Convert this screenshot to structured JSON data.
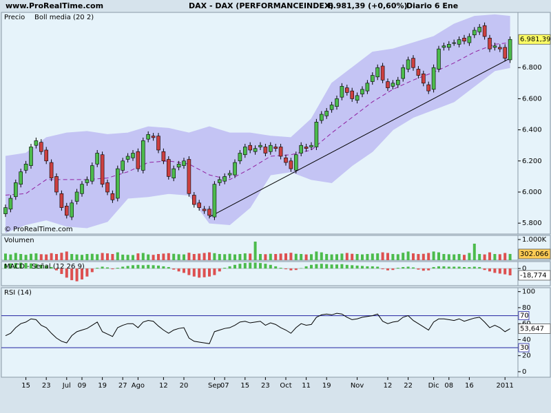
{
  "header": {
    "site": "www.ProRealTime.com",
    "instrument": "DAX - DAX (PERFORMANCEINDEX)",
    "quote": "6.981,39 (+0,60%)",
    "period": "Diario  6 Ene"
  },
  "chart_data": [
    {
      "type": "candlestick",
      "title": "Precio",
      "title_color": "#000000",
      "watermark": "© ProRealTime.com",
      "up_color": "#4cbb4c",
      "down_color": "#cc4040",
      "ylim": [
        5730,
        7155
      ],
      "yticks": [
        {
          "value": 5800,
          "label": "5.800"
        },
        {
          "value": 6000,
          "label": "6.000"
        },
        {
          "value": 6200,
          "label": "6.200"
        },
        {
          "value": 6400,
          "label": "6.400"
        },
        {
          "value": 6600,
          "label": "6.600"
        },
        {
          "value": 6800,
          "label": "6.800"
        }
      ],
      "ohlc": [
        [
          5860,
          5920,
          5840,
          5900
        ],
        [
          5890,
          5980,
          5870,
          5960
        ],
        [
          5970,
          6080,
          5950,
          6060
        ],
        [
          6050,
          6150,
          6030,
          6130
        ],
        [
          6140,
          6200,
          6120,
          6180
        ],
        [
          6170,
          6310,
          6150,
          6290
        ],
        [
          6300,
          6350,
          6280,
          6330
        ],
        [
          6320,
          6340,
          6240,
          6260
        ],
        [
          6270,
          6290,
          6180,
          6200
        ],
        [
          6190,
          6210,
          6070,
          6090
        ],
        [
          6100,
          6120,
          5980,
          6000
        ],
        [
          5990,
          6010,
          5880,
          5900
        ],
        [
          5910,
          5930,
          5830,
          5850
        ],
        [
          5840,
          5950,
          5820,
          5930
        ],
        [
          5940,
          6020,
          5920,
          6000
        ],
        [
          5990,
          6070,
          5970,
          6050
        ],
        [
          6060,
          6100,
          6040,
          6080
        ],
        [
          6070,
          6190,
          6050,
          6170
        ],
        [
          6180,
          6270,
          6160,
          6250
        ],
        [
          6240,
          6260,
          6030,
          6050
        ],
        [
          6060,
          6080,
          5980,
          6000
        ],
        [
          5990,
          6010,
          5930,
          5950
        ],
        [
          5960,
          6170,
          5940,
          6150
        ],
        [
          6140,
          6220,
          6120,
          6200
        ],
        [
          6210,
          6250,
          6190,
          6230
        ],
        [
          6220,
          6270,
          6200,
          6250
        ],
        [
          6260,
          6280,
          6130,
          6150
        ],
        [
          6140,
          6350,
          6120,
          6330
        ],
        [
          6340,
          6390,
          6320,
          6370
        ],
        [
          6360,
          6380,
          6330,
          6350
        ],
        [
          6360,
          6380,
          6250,
          6270
        ],
        [
          6260,
          6280,
          6180,
          6200
        ],
        [
          6210,
          6230,
          6080,
          6100
        ],
        [
          6090,
          6170,
          6070,
          6150
        ],
        [
          6160,
          6200,
          6140,
          6180
        ],
        [
          6170,
          6220,
          6150,
          6200
        ],
        [
          6210,
          6230,
          5970,
          5990
        ],
        [
          5980,
          6000,
          5900,
          5920
        ],
        [
          5930,
          5950,
          5880,
          5900
        ],
        [
          5890,
          5910,
          5860,
          5880
        ],
        [
          5890,
          5910,
          5830,
          5850
        ],
        [
          5840,
          6070,
          5820,
          6050
        ],
        [
          6060,
          6100,
          6040,
          6080
        ],
        [
          6070,
          6120,
          6050,
          6100
        ],
        [
          6110,
          6140,
          6090,
          6120
        ],
        [
          6110,
          6210,
          6090,
          6190
        ],
        [
          6200,
          6270,
          6180,
          6250
        ],
        [
          6240,
          6310,
          6220,
          6290
        ],
        [
          6300,
          6320,
          6250,
          6270
        ],
        [
          6260,
          6300,
          6240,
          6280
        ],
        [
          6290,
          6320,
          6270,
          6300
        ],
        [
          6290,
          6310,
          6230,
          6250
        ],
        [
          6260,
          6320,
          6240,
          6300
        ],
        [
          6290,
          6310,
          6260,
          6280
        ],
        [
          6290,
          6310,
          6210,
          6230
        ],
        [
          6220,
          6240,
          6170,
          6190
        ],
        [
          6200,
          6220,
          6130,
          6150
        ],
        [
          6140,
          6260,
          6120,
          6240
        ],
        [
          6250,
          6320,
          6230,
          6300
        ],
        [
          6290,
          6310,
          6260,
          6280
        ],
        [
          6290,
          6320,
          6270,
          6300
        ],
        [
          6290,
          6470,
          6270,
          6450
        ],
        [
          6460,
          6520,
          6440,
          6500
        ],
        [
          6490,
          6540,
          6470,
          6520
        ],
        [
          6530,
          6580,
          6510,
          6560
        ],
        [
          6550,
          6620,
          6530,
          6600
        ],
        [
          6610,
          6700,
          6590,
          6680
        ],
        [
          6670,
          6690,
          6620,
          6640
        ],
        [
          6650,
          6670,
          6580,
          6600
        ],
        [
          6590,
          6640,
          6570,
          6620
        ],
        [
          6630,
          6680,
          6610,
          6660
        ],
        [
          6650,
          6720,
          6630,
          6700
        ],
        [
          6710,
          6770,
          6690,
          6750
        ],
        [
          6740,
          6820,
          6720,
          6800
        ],
        [
          6810,
          6830,
          6700,
          6720
        ],
        [
          6710,
          6730,
          6650,
          6670
        ],
        [
          6680,
          6720,
          6660,
          6700
        ],
        [
          6690,
          6740,
          6670,
          6720
        ],
        [
          6730,
          6820,
          6710,
          6800
        ],
        [
          6790,
          6870,
          6770,
          6850
        ],
        [
          6860,
          6880,
          6780,
          6800
        ],
        [
          6790,
          6810,
          6730,
          6750
        ],
        [
          6760,
          6780,
          6680,
          6700
        ],
        [
          6690,
          6710,
          6630,
          6650
        ],
        [
          6660,
          6820,
          6640,
          6800
        ],
        [
          6790,
          6940,
          6770,
          6920
        ],
        [
          6930,
          6960,
          6910,
          6940
        ],
        [
          6930,
          6970,
          6910,
          6950
        ],
        [
          6960,
          6980,
          6940,
          6960
        ],
        [
          6950,
          7000,
          6930,
          6980
        ],
        [
          6990,
          7010,
          6950,
          6970
        ],
        [
          6960,
          7020,
          6940,
          7000
        ],
        [
          7010,
          7060,
          6990,
          7040
        ],
        [
          7030,
          7080,
          7010,
          7060
        ],
        [
          7070,
          7090,
          6980,
          7000
        ],
        [
          6990,
          7010,
          6900,
          6920
        ],
        [
          6930,
          6960,
          6910,
          6940
        ],
        [
          6930,
          6950,
          6900,
          6920
        ],
        [
          6930,
          6950,
          6840,
          6860
        ],
        [
          6850,
          7000,
          6830,
          6981.39
        ]
      ],
      "bands": {
        "name": "Boll media (20 2)",
        "color": "#9020a0",
        "fill": "#c4c4f4",
        "x": [
          0,
          4,
          8,
          12,
          16,
          20,
          24,
          28,
          32,
          36,
          40,
          44,
          48,
          52,
          56,
          60,
          64,
          68,
          72,
          76,
          80,
          84,
          88,
          92,
          96,
          99
        ],
        "upper": [
          6230,
          6250,
          6350,
          6380,
          6390,
          6370,
          6380,
          6420,
          6410,
          6380,
          6420,
          6380,
          6380,
          6360,
          6350,
          6470,
          6700,
          6800,
          6900,
          6920,
          6960,
          7000,
          7080,
          7130,
          7140,
          7130
        ],
        "middle": [
          5980,
          5990,
          6080,
          6080,
          6080,
          6090,
          6130,
          6190,
          6200,
          6180,
          6110,
          6080,
          6150,
          6230,
          6240,
          6270,
          6380,
          6480,
          6580,
          6660,
          6720,
          6770,
          6830,
          6900,
          6950,
          6960
        ],
        "lower": [
          5740,
          5790,
          5820,
          5780,
          5770,
          5810,
          5960,
          5970,
          5990,
          5980,
          5800,
          5790,
          5900,
          6110,
          6130,
          6080,
          6060,
          6170,
          6260,
          6400,
          6480,
          6530,
          6580,
          6680,
          6780,
          6800
        ]
      },
      "trendline": {
        "x": [
          40,
          99
        ],
        "y": [
          5840,
          6860
        ],
        "color": "#000000"
      },
      "last_label": "6.981,39",
      "label_fill": "#ffff66"
    },
    {
      "type": "bar",
      "title": "Volumen",
      "title_color": "#2a9a2a",
      "up_color": "#4cbb4c",
      "down_color": "#dd5050",
      "ylim": [
        0,
        1200
      ],
      "yticks": [
        {
          "value": 1000,
          "label": "1.000K"
        }
      ],
      "values": [
        320,
        280,
        350,
        300,
        260,
        310,
        330,
        290,
        280,
        340,
        300,
        360,
        420,
        300,
        280,
        260,
        300,
        310,
        290,
        350,
        330,
        300,
        380,
        270,
        260,
        250,
        330,
        350,
        280,
        260,
        300,
        320,
        340,
        310,
        290,
        280,
        360,
        300,
        320,
        350,
        380,
        340,
        300,
        290,
        310,
        280,
        300,
        330,
        320,
        900,
        300,
        290,
        310,
        300,
        320,
        330,
        360,
        310,
        300,
        280,
        290,
        420,
        380,
        300,
        280,
        290,
        320,
        350,
        310,
        300,
        280,
        300,
        320,
        330,
        380,
        350,
        300,
        290,
        360,
        420,
        330,
        300,
        310,
        350,
        420,
        380,
        300,
        290,
        280,
        300,
        260,
        350,
        800,
        300,
        280,
        380,
        300,
        290,
        350,
        302.066
      ],
      "last_label": "302.066",
      "label_fill": "#ffcc55"
    },
    {
      "type": "histogram",
      "title": "MACD - Señal (12 26 9)",
      "title_color": "#cc3333",
      "up_color": "#4cbb4c",
      "down_color": "#dd5050",
      "ylim": [
        -47,
        19
      ],
      "yticks": [
        0
      ],
      "values": [
        12,
        14,
        15,
        16,
        15,
        14,
        13,
        10,
        8,
        4,
        -5,
        -15,
        -25,
        -32,
        -35,
        -30,
        -22,
        -10,
        2,
        5,
        3,
        -2,
        2,
        5,
        7,
        9,
        10,
        9,
        10,
        9,
        8,
        6,
        4,
        -3,
        -8,
        -12,
        -18,
        -22,
        -25,
        -24,
        -22,
        -18,
        -8,
        2,
        6,
        10,
        13,
        15,
        16,
        16,
        15,
        13,
        10,
        6,
        2,
        -2,
        -5,
        -4,
        1,
        6,
        10,
        12,
        13,
        12,
        11,
        11,
        12,
        10,
        9,
        8,
        7,
        6,
        6,
        5,
        -2,
        -5,
        -4,
        2,
        4,
        5,
        3,
        -3,
        -6,
        -5,
        4,
        6,
        6,
        5,
        5,
        5,
        4,
        4,
        5,
        4,
        -4,
        -8,
        -12,
        -14,
        -16,
        -18.774
      ],
      "last_label": "-18,774",
      "label_fill": "#ffffff"
    },
    {
      "type": "line",
      "title": "RSI (14)",
      "title_color": "#000000",
      "color": "#000000",
      "ref_color": "#2020a0",
      "ylim": [
        -6.9,
        104.9
      ],
      "yticks": [
        0,
        20,
        40,
        60,
        80,
        100
      ],
      "ref_lines": [
        70,
        30
      ],
      "values": [
        45,
        48,
        55,
        60,
        62,
        66,
        65,
        58,
        55,
        48,
        42,
        38,
        36,
        45,
        50,
        52,
        54,
        58,
        62,
        50,
        47,
        44,
        55,
        58,
        60,
        60,
        55,
        62,
        64,
        63,
        57,
        52,
        48,
        52,
        54,
        55,
        42,
        38,
        37,
        36,
        35,
        50,
        52,
        54,
        55,
        58,
        62,
        63,
        61,
        62,
        63,
        58,
        61,
        59,
        55,
        52,
        48,
        55,
        60,
        58,
        59,
        68,
        71,
        72,
        71,
        73,
        72,
        68,
        65,
        66,
        68,
        69,
        70,
        72,
        63,
        60,
        62,
        63,
        68,
        70,
        64,
        60,
        56,
        52,
        62,
        66,
        66,
        65,
        64,
        66,
        63,
        65,
        67,
        68,
        62,
        55,
        58,
        55,
        50,
        53.647
      ],
      "last_label": "53,647",
      "label_fill": "#ffffff",
      "xticks": [
        {
          "value": 4,
          "label": "15"
        },
        {
          "value": 8,
          "label": "23"
        },
        {
          "value": 12,
          "label": "Jul"
        },
        {
          "value": 15,
          "label": "09"
        },
        {
          "value": 19,
          "label": "19"
        },
        {
          "value": 23,
          "label": "27"
        },
        {
          "value": 26,
          "label": "Ago"
        },
        {
          "value": 31,
          "label": "12"
        },
        {
          "value": 35,
          "label": "20"
        },
        {
          "value": 41,
          "label": "Sep"
        },
        {
          "value": 43,
          "label": "07"
        },
        {
          "value": 47,
          "label": "15"
        },
        {
          "value": 51,
          "label": "23"
        },
        {
          "value": 55,
          "label": "Oct"
        },
        {
          "value": 59,
          "label": "11"
        },
        {
          "value": 63,
          "label": "19"
        },
        {
          "value": 69,
          "label": "Nov"
        },
        {
          "value": 75,
          "label": "12"
        },
        {
          "value": 79,
          "label": "22"
        },
        {
          "value": 84,
          "label": "Dic"
        },
        {
          "value": 87,
          "label": "08"
        },
        {
          "value": 91,
          "label": "16"
        },
        {
          "value": 98,
          "label": "2011"
        }
      ]
    }
  ]
}
